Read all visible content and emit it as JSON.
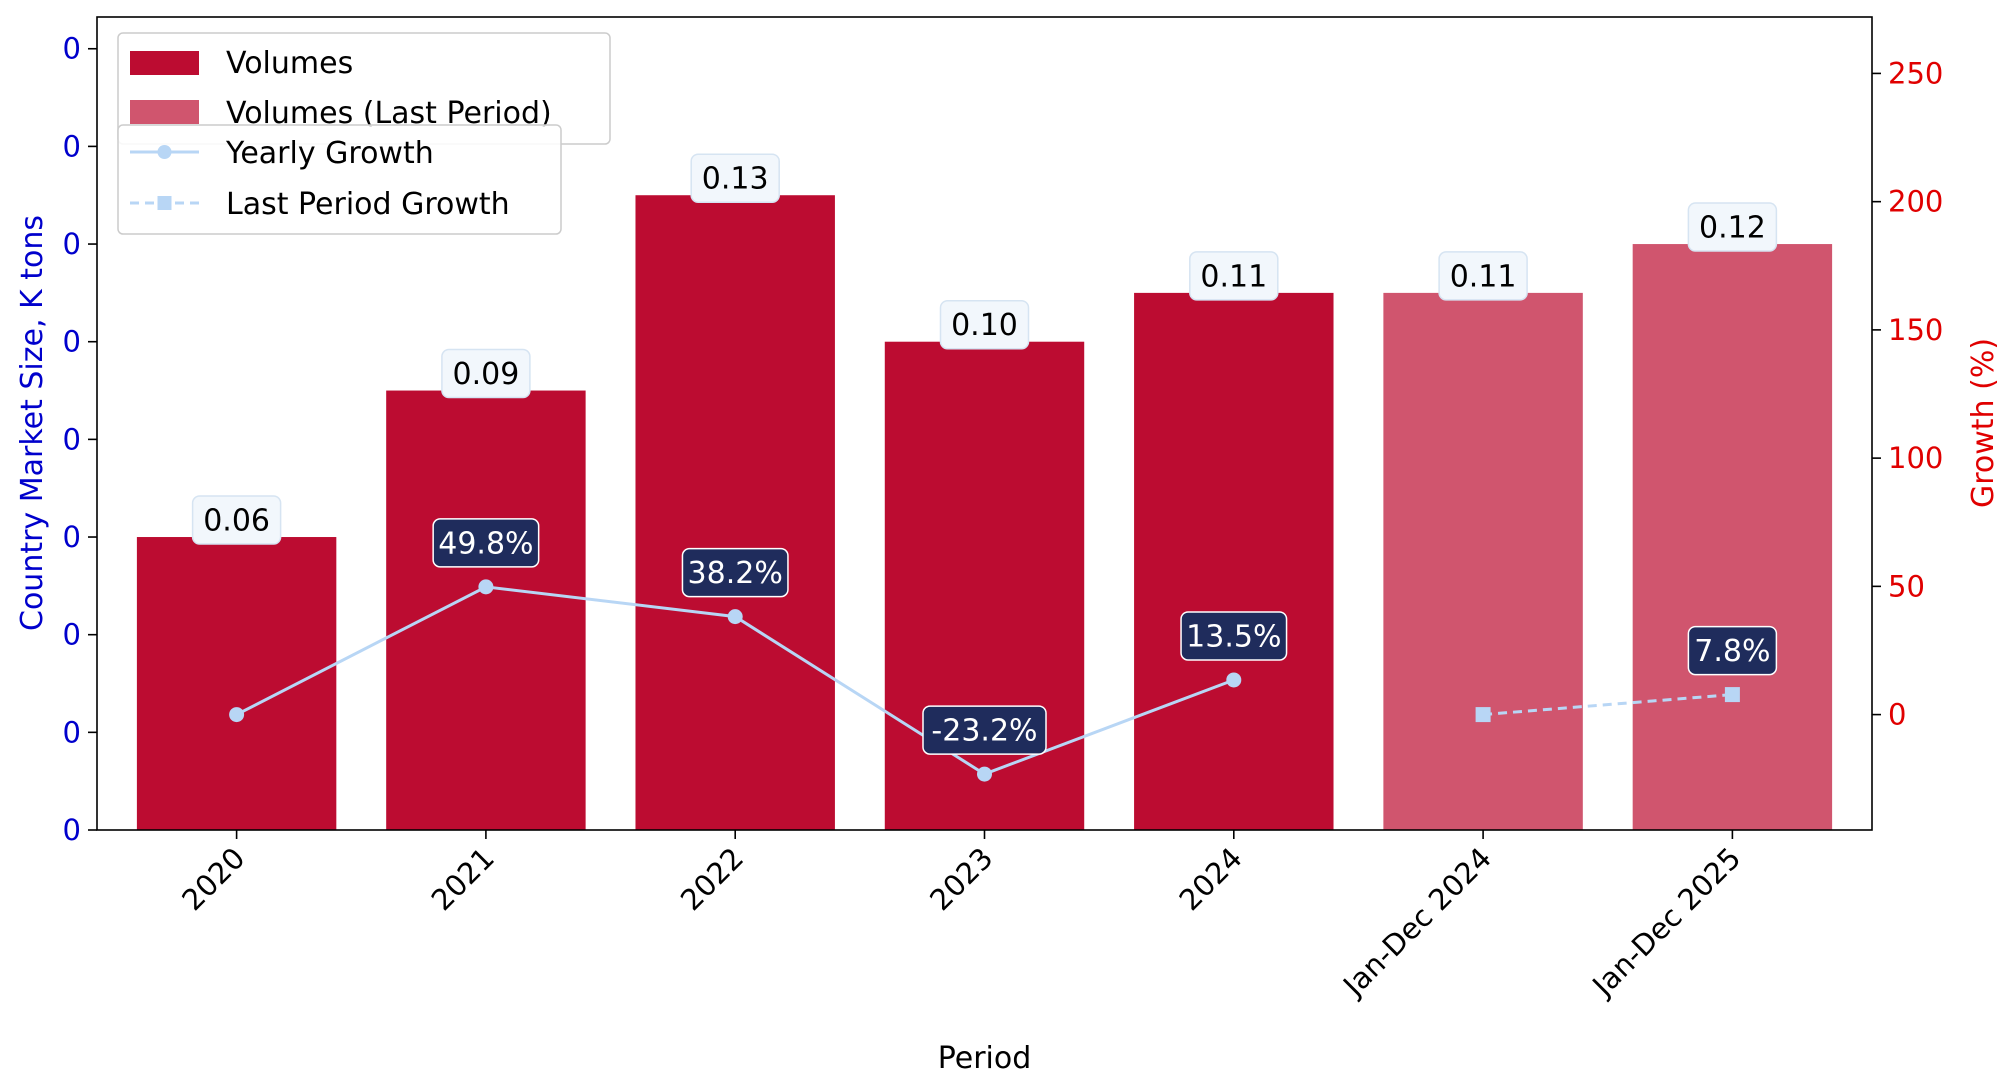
{
  "chart_data": {
    "type": "bar",
    "xlabel": "Period",
    "ylabel": "Country Market Size, K tons",
    "y2label": "Growth (%)",
    "categories": [
      "2020",
      "2021",
      "2022",
      "2023",
      "2024",
      "Jan-Dec 2024",
      "Jan-Dec 2025"
    ],
    "ylim": [
      0,
      0.1665
    ],
    "y2lim": [
      -45,
      272
    ],
    "left_tick_labels": [
      "0",
      "0",
      "0",
      "0",
      "0",
      "0",
      "0",
      "0",
      "0"
    ],
    "left_tick_values": [
      0,
      0.02,
      0.04,
      0.06,
      0.08,
      0.1,
      0.12,
      0.14,
      0.16
    ],
    "right_tick_values": [
      0,
      50,
      100,
      150,
      200,
      250
    ],
    "series": [
      {
        "name": "Volumes",
        "kind": "bar",
        "color": "#bc0c31",
        "values": [
          0.06,
          0.09,
          0.13,
          0.1,
          0.11,
          null,
          null
        ],
        "labels": [
          "0.06",
          "0.09",
          "0.13",
          "0.10",
          "0.11",
          "",
          ""
        ]
      },
      {
        "name": "Volumes (Last Period)",
        "kind": "bar",
        "color": "#d0556e",
        "values": [
          null,
          null,
          null,
          null,
          null,
          0.11,
          0.12
        ],
        "labels": [
          "",
          "",
          "",
          "",
          "",
          "0.11",
          "0.12"
        ]
      },
      {
        "name": "Yearly Growth",
        "kind": "line",
        "axis": "right",
        "color": "#b8d6f5",
        "style": "solid",
        "marker": "circle",
        "values": [
          0,
          49.8,
          38.2,
          -23.2,
          13.5,
          null,
          null
        ],
        "labels": [
          "",
          "49.8%",
          "38.2%",
          "-23.2%",
          "13.5%",
          "",
          ""
        ]
      },
      {
        "name": "Last Period Growth",
        "kind": "line",
        "axis": "right",
        "color": "#b8d6f5",
        "style": "dashed",
        "marker": "square",
        "values": [
          null,
          null,
          null,
          null,
          null,
          0,
          7.8
        ],
        "labels": [
          "",
          "",
          "",
          "",
          "",
          "",
          "7.8%"
        ]
      }
    ],
    "legend_placement": "top-left",
    "grid": false
  }
}
